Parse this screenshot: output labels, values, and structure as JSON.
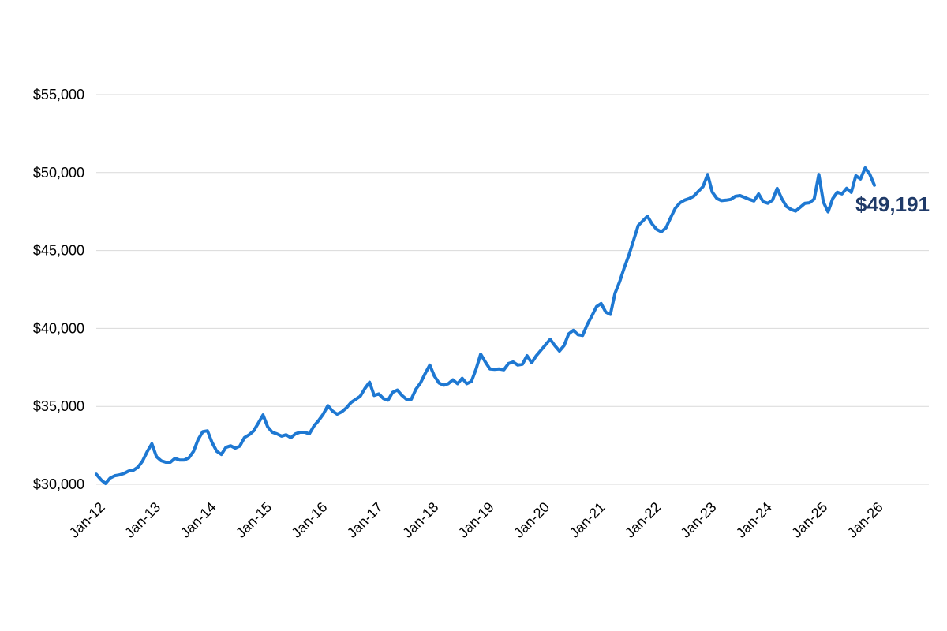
{
  "chart_data": {
    "type": "line",
    "title": "",
    "xlabel": "",
    "ylabel": "",
    "x_start": "Jan-12",
    "x_end": "Jan-26",
    "x_interval": "monthly",
    "n_points": 169,
    "points_per_x_tick": 12,
    "x_tick_labels": [
      "Jan-12",
      "Jan-13",
      "Jan-14",
      "Jan-15",
      "Jan-16",
      "Jan-17",
      "Jan-18",
      "Jan-19",
      "Jan-20",
      "Jan-21",
      "Jan-22",
      "Jan-23",
      "Jan-24",
      "Jan-25",
      "Jan-26"
    ],
    "ylim": [
      30000,
      55000
    ],
    "y_ticks": [
      {
        "value": 30000,
        "label": "$30,000"
      },
      {
        "value": 35000,
        "label": "$35,000"
      },
      {
        "value": 40000,
        "label": "$40,000"
      },
      {
        "value": 45000,
        "label": "$45,000"
      },
      {
        "value": 50000,
        "label": "$50,000"
      },
      {
        "value": 55000,
        "label": "$55,000"
      }
    ],
    "grid": "horizontal-only",
    "legend": "none",
    "series": [
      {
        "color": "#1e78d2",
        "stroke_width": 4,
        "values": [
          30650,
          30300,
          30050,
          30400,
          30550,
          30600,
          30700,
          30850,
          30900,
          31100,
          31500,
          32100,
          32600,
          31770,
          31515,
          31415,
          31415,
          31665,
          31560,
          31560,
          31700,
          32120,
          32880,
          33380,
          33430,
          32680,
          32120,
          31920,
          32370,
          32470,
          32320,
          32450,
          33000,
          33180,
          33430,
          33930,
          34450,
          33690,
          33340,
          33240,
          33090,
          33180,
          32990,
          33240,
          33340,
          33340,
          33240,
          33740,
          34090,
          34500,
          35050,
          34700,
          34500,
          34650,
          34900,
          35250,
          35450,
          35650,
          36150,
          36550,
          35700,
          35800,
          35500,
          35400,
          35900,
          36050,
          35700,
          35450,
          35450,
          36100,
          36500,
          37100,
          37650,
          36950,
          36500,
          36350,
          36450,
          36700,
          36450,
          36800,
          36450,
          36600,
          37400,
          38350,
          37850,
          37400,
          37380,
          37400,
          37350,
          37750,
          37850,
          37650,
          37700,
          38250,
          37800,
          38250,
          38600,
          38950,
          39300,
          38900,
          38550,
          38900,
          39650,
          39880,
          39600,
          39550,
          40250,
          40800,
          41400,
          41600,
          41050,
          40900,
          42250,
          43000,
          43900,
          44700,
          45650,
          46600,
          46900,
          47200,
          46700,
          46350,
          46200,
          46450,
          47100,
          47700,
          48050,
          48230,
          48330,
          48480,
          48800,
          49100,
          49880,
          48740,
          48330,
          48200,
          48230,
          48280,
          48480,
          48520,
          48400,
          48280,
          48180,
          48630,
          48130,
          48030,
          48230,
          48990,
          48330,
          47830,
          47630,
          47530,
          47780,
          48030,
          48060,
          48300,
          49880,
          48100,
          47480,
          48330,
          48740,
          48630,
          48990,
          48730,
          49800,
          49590,
          50300,
          49900,
          49191
        ]
      }
    ],
    "final_value": 49191,
    "end_label": "$49,191",
    "colors": {
      "line": "#1e78d2",
      "end_label": "#1f3a68",
      "axis_text": "#000000",
      "gridline": "#d9d9d9",
      "background": "#ffffff"
    }
  }
}
